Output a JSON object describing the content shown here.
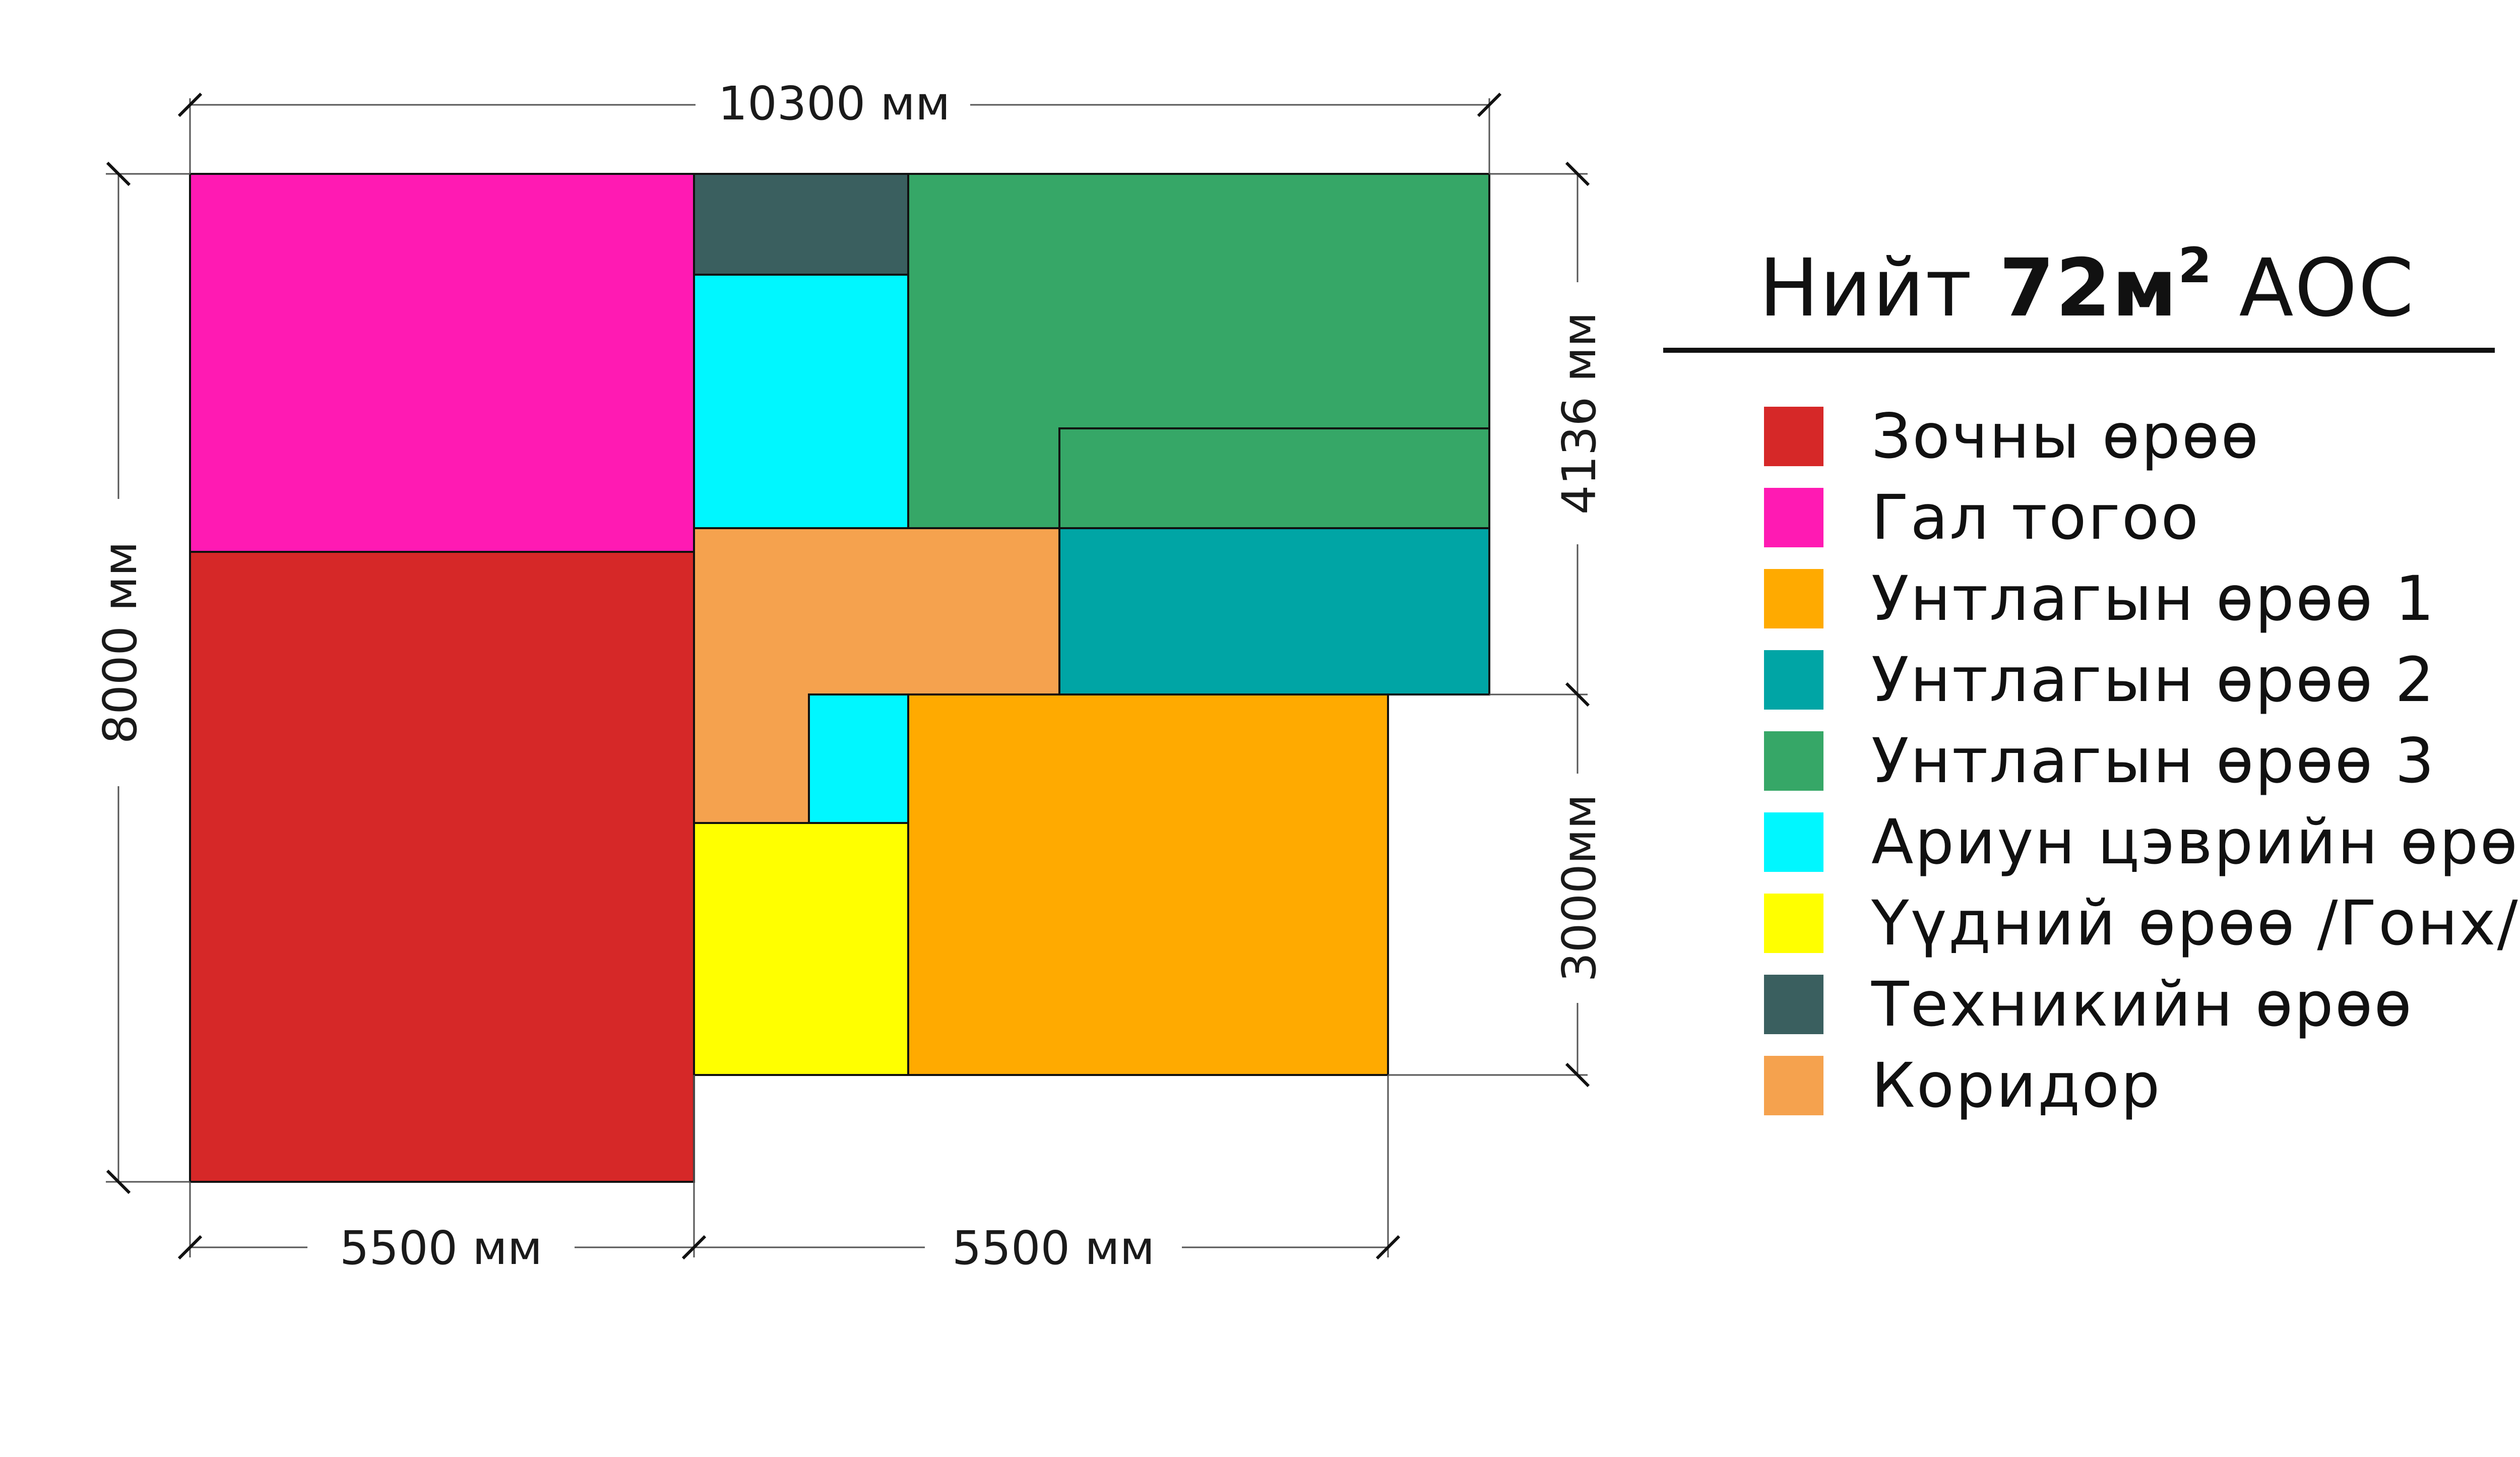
{
  "dimensions": {
    "total_width": "10300 мм",
    "total_height": "8000 мм",
    "right_upper": "4136 мм",
    "right_lower": "3000мм",
    "bottom_left": "5500 мм",
    "bottom_right": "5500 мм"
  },
  "legend": {
    "title_prefix": "Нийт",
    "area_value": "72м",
    "area_exponent": "2",
    "title_suffix": "АОС",
    "items": [
      {
        "label": "Зочны өрөө",
        "color": "#d62828"
      },
      {
        "label": "Гал тогоо",
        "color": "#ff1ab3"
      },
      {
        "label": "Унтлагын өрөө 1",
        "color": "#ffaa00"
      },
      {
        "label": "Унтлагын өрөө 2",
        "color": "#00a5a5"
      },
      {
        "label": "Унтлагын өрөө 3",
        "color": "#36a767"
      },
      {
        "label": "Ариун цэврийн өрөө",
        "color": "#00f7ff"
      },
      {
        "label": "Үүдний өрөө /Гонх/",
        "color": "#ffff00"
      },
      {
        "label": "Техникийн өрөө",
        "color": "#3a5f5f"
      },
      {
        "label": "Коридор",
        "color": "#f5a24e"
      }
    ]
  }
}
